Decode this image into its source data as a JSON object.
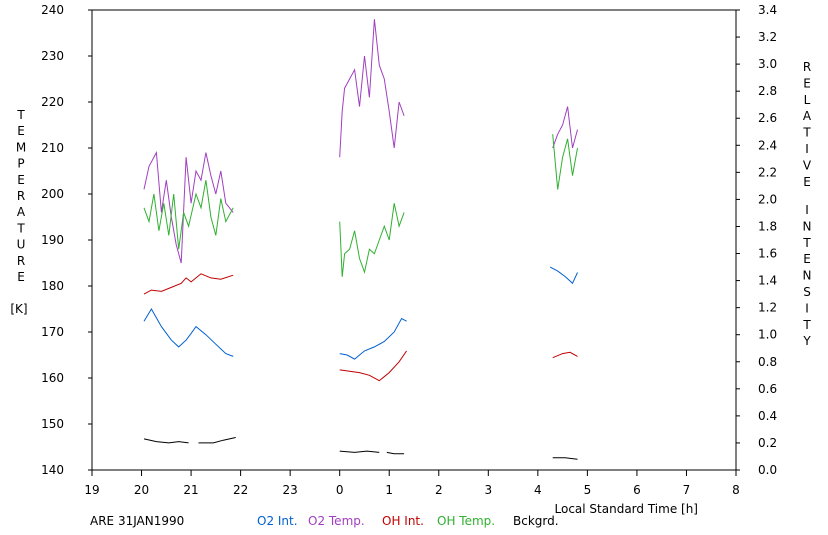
{
  "chart_data": {
    "type": "line",
    "title": "",
    "left_axis": {
      "label_letters": [
        "T",
        "E",
        "M",
        "P",
        "E",
        "R",
        "A",
        "T",
        "U",
        "R",
        "E"
      ],
      "unit": "[K]",
      "ylim": [
        140,
        240
      ],
      "ticks": [
        "140",
        "150",
        "160",
        "170",
        "180",
        "190",
        "200",
        "210",
        "220",
        "230",
        "240"
      ]
    },
    "right_axis": {
      "label_line1": [
        "R",
        "E",
        "L",
        "A",
        "T",
        "I",
        "V",
        "E"
      ],
      "label_line2": [
        "I",
        "N",
        "T",
        "E",
        "N",
        "S",
        "I",
        "T",
        "Y"
      ],
      "ylim": [
        0.0,
        3.4
      ],
      "ticks": [
        "0.0",
        "0.2",
        "0.4",
        "0.6",
        "0.8",
        "1.0",
        "1.2",
        "1.4",
        "1.6",
        "1.8",
        "2.0",
        "2.2",
        "2.4",
        "2.6",
        "2.8",
        "3.0",
        "3.2",
        "3.4"
      ]
    },
    "x_axis": {
      "label": "Local Standard Time [h]",
      "ticks": [
        "19",
        "20",
        "21",
        "22",
        "23",
        "0",
        "1",
        "2",
        "3",
        "4",
        "5",
        "6",
        "7",
        "8"
      ]
    },
    "site_date": "ARE 31JAN1990",
    "grid": false,
    "series": [
      {
        "name": "O2 Int.",
        "color": "#0060d0",
        "axis": "right",
        "segments": [
          [
            [
              20.05,
              1.1
            ],
            [
              20.2,
              1.19
            ],
            [
              20.4,
              1.06
            ],
            [
              20.6,
              0.96
            ],
            [
              20.75,
              0.91
            ],
            [
              20.9,
              0.96
            ],
            [
              21.0,
              1.01
            ],
            [
              21.1,
              1.06
            ],
            [
              21.3,
              1.0
            ],
            [
              21.5,
              0.93
            ],
            [
              21.7,
              0.86
            ],
            [
              21.85,
              0.84
            ]
          ],
          [
            [
              24.0,
              0.86
            ],
            [
              24.15,
              0.85
            ],
            [
              24.3,
              0.82
            ],
            [
              24.5,
              0.88
            ],
            [
              24.7,
              0.91
            ],
            [
              24.9,
              0.95
            ],
            [
              25.1,
              1.02
            ],
            [
              25.25,
              1.12
            ],
            [
              25.35,
              1.1
            ]
          ],
          [
            [
              28.25,
              1.5
            ],
            [
              28.4,
              1.47
            ],
            [
              28.55,
              1.43
            ],
            [
              28.7,
              1.38
            ],
            [
              28.8,
              1.46
            ]
          ]
        ]
      },
      {
        "name": "O2 Temp.",
        "color": "#a040c0",
        "axis": "left",
        "segments": [
          [
            [
              20.05,
              201
            ],
            [
              20.15,
              206
            ],
            [
              20.3,
              209
            ],
            [
              20.4,
              196
            ],
            [
              20.5,
              203
            ],
            [
              20.6,
              195
            ],
            [
              20.7,
              189
            ],
            [
              20.8,
              185
            ],
            [
              20.9,
              208
            ],
            [
              21.0,
              198
            ],
            [
              21.1,
              205
            ],
            [
              21.2,
              203
            ],
            [
              21.3,
              209
            ],
            [
              21.4,
              204
            ],
            [
              21.5,
              200
            ],
            [
              21.6,
              205
            ],
            [
              21.7,
              198
            ],
            [
              21.85,
              196
            ]
          ],
          [
            [
              24.0,
              208
            ],
            [
              24.05,
              218
            ],
            [
              24.1,
              223
            ],
            [
              24.2,
              225
            ],
            [
              24.3,
              227
            ],
            [
              24.4,
              219
            ],
            [
              24.5,
              230
            ],
            [
              24.6,
              221
            ],
            [
              24.7,
              238
            ],
            [
              24.8,
              228
            ],
            [
              24.9,
              225
            ],
            [
              25.0,
              218
            ],
            [
              25.1,
              210
            ],
            [
              25.2,
              220
            ],
            [
              25.3,
              217
            ]
          ],
          [
            [
              28.3,
              210
            ],
            [
              28.4,
              213
            ],
            [
              28.5,
              215
            ],
            [
              28.6,
              219
            ],
            [
              28.7,
              210
            ],
            [
              28.8,
              214
            ]
          ]
        ]
      },
      {
        "name": "OH Int.",
        "color": "#c00000",
        "axis": "right",
        "segments": [
          [
            [
              20.05,
              1.3
            ],
            [
              20.2,
              1.33
            ],
            [
              20.4,
              1.32
            ],
            [
              20.6,
              1.35
            ],
            [
              20.8,
              1.38
            ],
            [
              20.9,
              1.42
            ],
            [
              21.0,
              1.39
            ],
            [
              21.2,
              1.45
            ],
            [
              21.4,
              1.42
            ],
            [
              21.6,
              1.41
            ],
            [
              21.85,
              1.44
            ]
          ],
          [
            [
              24.0,
              0.74
            ],
            [
              24.2,
              0.73
            ],
            [
              24.4,
              0.72
            ],
            [
              24.6,
              0.7
            ],
            [
              24.8,
              0.66
            ],
            [
              25.0,
              0.72
            ],
            [
              25.2,
              0.8
            ],
            [
              25.35,
              0.88
            ]
          ],
          [
            [
              28.3,
              0.83
            ],
            [
              28.5,
              0.86
            ],
            [
              28.65,
              0.87
            ],
            [
              28.8,
              0.84
            ]
          ]
        ]
      },
      {
        "name": "OH Temp.",
        "color": "#30b030",
        "axis": "left",
        "segments": [
          [
            [
              20.05,
              197
            ],
            [
              20.15,
              194
            ],
            [
              20.25,
              200
            ],
            [
              20.35,
              192
            ],
            [
              20.45,
              198
            ],
            [
              20.55,
              191
            ],
            [
              20.65,
              200
            ],
            [
              20.75,
              188
            ],
            [
              20.85,
              196
            ],
            [
              20.95,
              193
            ],
            [
              21.1,
              200
            ],
            [
              21.2,
              197
            ],
            [
              21.3,
              203
            ],
            [
              21.4,
              195
            ],
            [
              21.5,
              191
            ],
            [
              21.6,
              199
            ],
            [
              21.7,
              194
            ],
            [
              21.85,
              197
            ]
          ],
          [
            [
              24.0,
              194
            ],
            [
              24.05,
              182
            ],
            [
              24.1,
              187
            ],
            [
              24.2,
              188
            ],
            [
              24.3,
              192
            ],
            [
              24.4,
              186
            ],
            [
              24.5,
              183
            ],
            [
              24.6,
              188
            ],
            [
              24.7,
              187
            ],
            [
              24.8,
              190
            ],
            [
              24.9,
              193
            ],
            [
              25.0,
              190
            ],
            [
              25.1,
              198
            ],
            [
              25.2,
              193
            ],
            [
              25.3,
              196
            ]
          ],
          [
            [
              28.3,
              213
            ],
            [
              28.4,
              201
            ],
            [
              28.5,
              208
            ],
            [
              28.6,
              212
            ],
            [
              28.7,
              204
            ],
            [
              28.8,
              210
            ]
          ]
        ]
      },
      {
        "name": "Bckgrd.",
        "color": "#000000",
        "axis": "right",
        "segments": [
          [
            [
              20.05,
              0.23
            ],
            [
              20.3,
              0.21
            ],
            [
              20.55,
              0.2
            ],
            [
              20.75,
              0.21
            ],
            [
              20.95,
              0.2
            ]
          ],
          [
            [
              21.15,
              0.2
            ],
            [
              21.45,
              0.2
            ],
            [
              21.65,
              0.22
            ],
            [
              21.9,
              0.24
            ]
          ],
          [
            [
              24.0,
              0.14
            ],
            [
              24.3,
              0.13
            ],
            [
              24.55,
              0.14
            ],
            [
              24.8,
              0.13
            ]
          ],
          [
            [
              24.95,
              0.13
            ],
            [
              25.1,
              0.12
            ],
            [
              25.3,
              0.12
            ]
          ],
          [
            [
              28.3,
              0.09
            ],
            [
              28.55,
              0.09
            ],
            [
              28.8,
              0.08
            ]
          ]
        ]
      }
    ]
  }
}
